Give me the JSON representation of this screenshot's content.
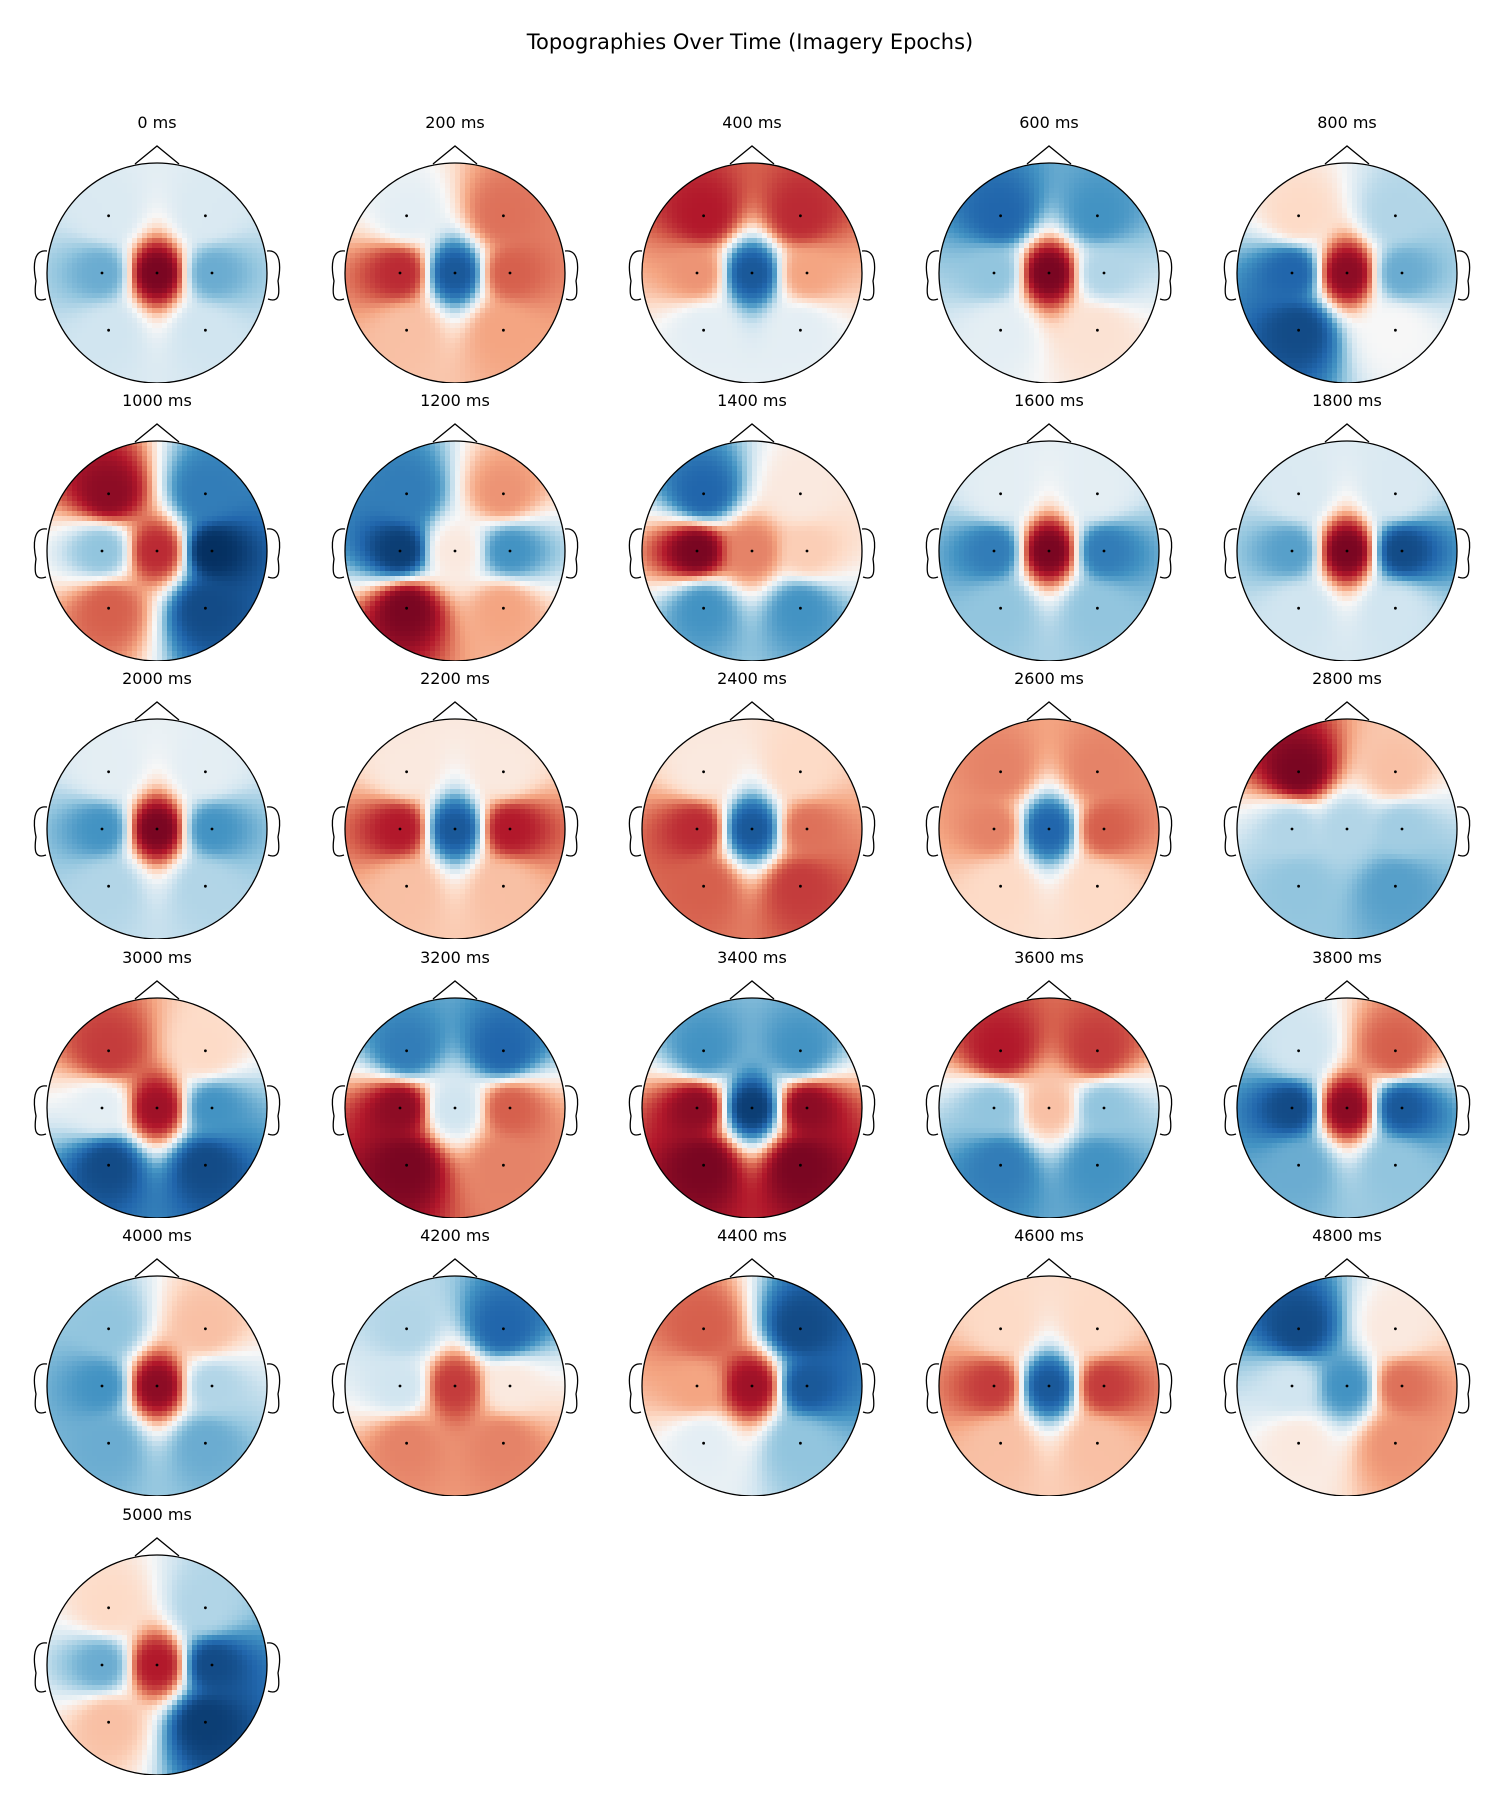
{
  "title": "Topographies Over Time (Imagery Epochs)",
  "chart_data": {
    "type": "heatmap",
    "title": "Topographies Over Time (Imagery Epochs)",
    "colormap": "RdBu_r",
    "colors": {
      "positive": "#67001f",
      "negative": "#053061",
      "zero": "#f7f7f7"
    },
    "layout": {
      "columns": 5,
      "rows": 6
    },
    "sensors": [
      "front-left",
      "front-right",
      "left",
      "center",
      "right",
      "back-left",
      "back-right"
    ],
    "unit_note": "relative amplitude, -1 (blue) to +1 (red)",
    "panels": [
      {
        "label": "0 ms",
        "values": [
          -0.15,
          -0.15,
          -0.5,
          0.95,
          -0.5,
          -0.2,
          -0.2
        ]
      },
      {
        "label": "200 ms",
        "values": [
          -0.1,
          0.55,
          0.75,
          -0.85,
          0.6,
          0.3,
          0.4
        ]
      },
      {
        "label": "400 ms",
        "values": [
          0.8,
          0.75,
          0.45,
          -0.85,
          0.4,
          -0.1,
          -0.1
        ]
      },
      {
        "label": "600 ms",
        "values": [
          -0.8,
          -0.6,
          -0.4,
          0.95,
          -0.3,
          -0.1,
          0.15
        ]
      },
      {
        "label": "800 ms",
        "values": [
          0.2,
          -0.3,
          -0.8,
          0.9,
          -0.5,
          -0.9,
          0.0
        ]
      },
      {
        "label": "1000 ms",
        "values": [
          0.9,
          -0.7,
          -0.4,
          0.75,
          -1.0,
          0.6,
          -0.9
        ]
      },
      {
        "label": "1200 ms",
        "values": [
          -0.7,
          0.45,
          -0.95,
          0.1,
          -0.6,
          0.95,
          0.4
        ]
      },
      {
        "label": "1400 ms",
        "values": [
          -0.8,
          0.1,
          0.95,
          0.5,
          0.25,
          -0.6,
          -0.6
        ]
      },
      {
        "label": "1600 ms",
        "values": [
          -0.1,
          -0.1,
          -0.7,
          0.95,
          -0.7,
          -0.4,
          -0.4
        ]
      },
      {
        "label": "1800 ms",
        "values": [
          -0.15,
          -0.15,
          -0.55,
          0.95,
          -0.9,
          -0.2,
          -0.2
        ]
      },
      {
        "label": "2000 ms",
        "values": [
          -0.1,
          -0.1,
          -0.6,
          0.95,
          -0.6,
          -0.3,
          -0.3
        ]
      },
      {
        "label": "2200 ms",
        "values": [
          0.1,
          0.1,
          0.8,
          -0.85,
          0.8,
          0.3,
          0.3
        ]
      },
      {
        "label": "2400 ms",
        "values": [
          0.1,
          0.2,
          0.75,
          -0.85,
          0.55,
          0.6,
          0.7
        ]
      },
      {
        "label": "2600 ms",
        "values": [
          0.5,
          0.5,
          0.5,
          -0.8,
          0.6,
          0.2,
          0.2
        ]
      },
      {
        "label": "2800 ms",
        "values": [
          0.95,
          0.3,
          -0.3,
          -0.3,
          -0.35,
          -0.4,
          -0.55
        ]
      },
      {
        "label": "3000 ms",
        "values": [
          0.7,
          0.2,
          -0.1,
          0.85,
          -0.6,
          -0.9,
          -0.9
        ]
      },
      {
        "label": "3200 ms",
        "values": [
          -0.7,
          -0.8,
          0.9,
          -0.2,
          0.6,
          0.95,
          0.5
        ]
      },
      {
        "label": "3400 ms",
        "values": [
          -0.6,
          -0.6,
          0.9,
          -0.95,
          0.9,
          0.95,
          0.95
        ]
      },
      {
        "label": "3600 ms",
        "values": [
          0.8,
          0.7,
          -0.4,
          0.3,
          -0.4,
          -0.7,
          -0.6
        ]
      },
      {
        "label": "3800 ms",
        "values": [
          -0.2,
          0.6,
          -0.9,
          0.9,
          -0.85,
          -0.5,
          -0.4
        ]
      },
      {
        "label": "4000 ms",
        "values": [
          -0.4,
          0.3,
          -0.6,
          0.9,
          -0.3,
          -0.5,
          -0.5
        ]
      },
      {
        "label": "4200 ms",
        "values": [
          -0.3,
          -0.8,
          -0.2,
          0.7,
          0.1,
          0.5,
          0.5
        ]
      },
      {
        "label": "4400 ms",
        "values": [
          0.6,
          -0.9,
          0.4,
          0.85,
          -0.85,
          -0.1,
          -0.4
        ]
      },
      {
        "label": "4600 ms",
        "values": [
          0.2,
          0.2,
          0.7,
          -0.85,
          0.7,
          0.3,
          0.3
        ]
      },
      {
        "label": "4800 ms",
        "values": [
          -0.9,
          0.1,
          -0.2,
          -0.6,
          0.55,
          0.1,
          0.45
        ]
      },
      {
        "label": "5000 ms",
        "values": [
          0.2,
          -0.3,
          -0.5,
          0.8,
          -0.9,
          0.3,
          -0.95
        ]
      }
    ]
  }
}
